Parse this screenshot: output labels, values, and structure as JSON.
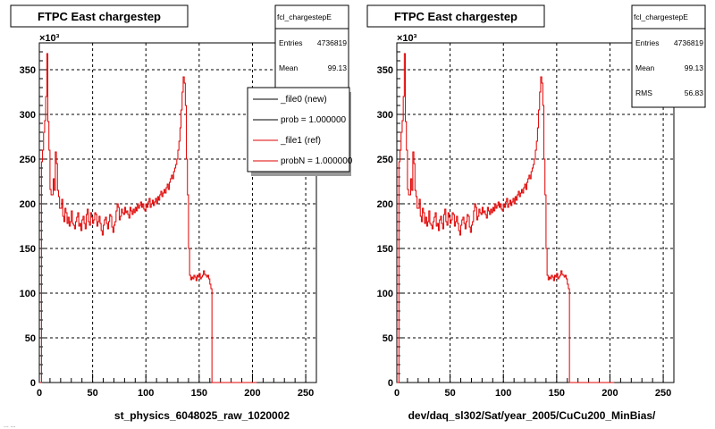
{
  "colors": {
    "frame": "#000000",
    "grid": "#000000",
    "new_hist": "#000000",
    "ref_hist": "#e00000",
    "stats_bg": "#ffffff",
    "legend_bg": "#ffffff",
    "legend_shadow": "#9a9a9a"
  },
  "canvas_footer": {
    "partial_text": "... ..."
  },
  "chart_data": [
    {
      "type": "step",
      "title": "FTPC East chargestep",
      "xlabel": "st_physics_6048025_raw_1020002",
      "ylabel": "",
      "y_multiplier": "×10³",
      "xlim": [
        0,
        260
      ],
      "ylim": [
        0,
        380
      ],
      "xticks": [
        "0",
        "50",
        "100",
        "150",
        "200",
        "250"
      ],
      "yticks": [
        "0",
        "50",
        "100",
        "150",
        "200",
        "250",
        "300",
        "350"
      ],
      "grid": true,
      "stats": {
        "name": "fcl_chargestepE",
        "rows": [
          {
            "label": "Entries",
            "value": "4736819"
          },
          {
            "label": "Mean",
            "value": "99.13"
          }
        ]
      },
      "legend": {
        "placement": "top-right",
        "entries": [
          {
            "label": "_file0 (new)",
            "color_key": "new_hist"
          },
          {
            "label": "prob = 1.000000",
            "color_key": "new_hist"
          },
          {
            "label": "_file1 (ref)",
            "color_key": "ref_hist"
          },
          {
            "label": "probN = 1.000000",
            "color_key": "ref_hist"
          }
        ]
      },
      "series": [
        {
          "color_key": "ref_hist",
          "bin_width": 1,
          "x": [
            0,
            1,
            2,
            3,
            4,
            5,
            6,
            7,
            8,
            9,
            10,
            11,
            12,
            13,
            14,
            15,
            16,
            17,
            18,
            19,
            20,
            21,
            22,
            23,
            24,
            25,
            26,
            27,
            28,
            29,
            30,
            31,
            32,
            33,
            34,
            35,
            36,
            37,
            38,
            39,
            40,
            41,
            42,
            43,
            44,
            45,
            46,
            47,
            48,
            49,
            50,
            51,
            52,
            53,
            54,
            55,
            56,
            57,
            58,
            59,
            60,
            61,
            62,
            63,
            64,
            65,
            66,
            67,
            68,
            69,
            70,
            71,
            72,
            73,
            74,
            75,
            76,
            77,
            78,
            79,
            80,
            81,
            82,
            83,
            84,
            85,
            86,
            87,
            88,
            89,
            90,
            91,
            92,
            93,
            94,
            95,
            96,
            97,
            98,
            99,
            100,
            101,
            102,
            103,
            104,
            105,
            106,
            107,
            108,
            109,
            110,
            111,
            112,
            113,
            114,
            115,
            116,
            117,
            118,
            119,
            120,
            121,
            122,
            123,
            124,
            125,
            126,
            127,
            128,
            129,
            130,
            131,
            132,
            133,
            134,
            135,
            136,
            137,
            138,
            139,
            140,
            141,
            142,
            143,
            144,
            145,
            146,
            147,
            148,
            149,
            150,
            151,
            152,
            153,
            154,
            155,
            156,
            157,
            158,
            159,
            160,
            161,
            162,
            163,
            164,
            165,
            166,
            167,
            168,
            169,
            170,
            171,
            172,
            173,
            174,
            175,
            176,
            177,
            178,
            179,
            180,
            181,
            182,
            183,
            184,
            185,
            186,
            187,
            188,
            189,
            190,
            191,
            192,
            193,
            194,
            195,
            196,
            197,
            198,
            199,
            200,
            201,
            202,
            203
          ],
          "values": [
            0,
            0,
            247,
            260,
            280,
            293,
            320,
            368,
            292,
            260,
            216,
            210,
            210,
            228,
            215,
            258,
            245,
            215,
            208,
            195,
            195,
            205,
            186,
            180,
            195,
            190,
            178,
            185,
            175,
            180,
            192,
            178,
            176,
            172,
            180,
            185,
            190,
            175,
            178,
            170,
            182,
            186,
            178,
            172,
            188,
            194,
            180,
            176,
            190,
            185,
            178,
            182,
            190,
            188,
            175,
            180,
            186,
            178,
            170,
            165,
            176,
            182,
            185,
            178,
            172,
            180,
            188,
            186,
            174,
            168,
            176,
            180,
            192,
            200,
            196,
            182,
            186,
            194,
            190,
            188,
            196,
            190,
            192,
            188,
            184,
            196,
            192,
            188,
            194,
            190,
            196,
            192,
            200,
            195,
            198,
            202,
            196,
            200,
            194,
            192,
            200,
            196,
            202,
            206,
            196,
            200,
            204,
            198,
            202,
            206,
            200,
            208,
            204,
            210,
            214,
            208,
            212,
            216,
            212,
            218,
            222,
            216,
            224,
            228,
            232,
            228,
            236,
            240,
            244,
            250,
            260,
            270,
            285,
            305,
            325,
            342,
            335,
            310,
            250,
            210,
            150,
            120,
            115,
            118,
            116,
            120,
            118,
            114,
            120,
            118,
            122,
            116,
            118,
            120,
            125,
            121,
            120,
            118,
            120,
            116,
            110,
            105,
            0,
            0,
            0,
            0,
            0,
            0,
            0,
            0,
            0,
            0,
            0,
            0,
            0,
            0,
            0,
            0,
            0,
            0,
            0,
            0,
            0,
            0,
            0,
            0,
            0,
            0,
            0,
            0,
            0,
            0,
            0,
            0,
            0,
            0,
            0,
            0,
            0,
            0,
            0,
            0,
            0,
            0
          ]
        }
      ]
    },
    {
      "type": "step",
      "title": "FTPC East chargestep",
      "xlabel": "dev/daq_sl302/Sat/year_2005/CuCu200_MinBias/",
      "ylabel": "",
      "y_multiplier": "×10³",
      "xlim": [
        0,
        260
      ],
      "ylim": [
        0,
        380
      ],
      "xticks": [
        "0",
        "50",
        "100",
        "150",
        "200",
        "250"
      ],
      "yticks": [
        "0",
        "50",
        "100",
        "150",
        "200",
        "250",
        "300",
        "350"
      ],
      "grid": true,
      "stats": {
        "name": "fcl_chargestepE",
        "rows": [
          {
            "label": "Entries",
            "value": "4736819"
          },
          {
            "label": "Mean",
            "value": "99.13"
          },
          {
            "label": "RMS",
            "value": "56.83"
          }
        ]
      },
      "legend": null,
      "series": [
        {
          "color_key": "ref_hist",
          "bin_width": 1,
          "x": "same_as_first",
          "values": "same_as_first"
        }
      ]
    }
  ]
}
